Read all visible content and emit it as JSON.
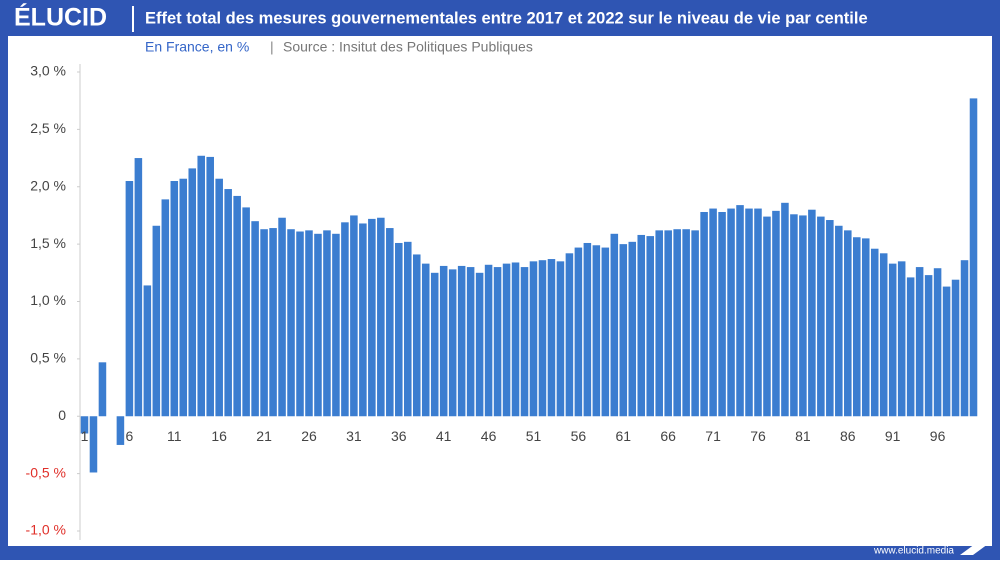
{
  "brand": {
    "logo": "ÉLUCID",
    "website": "www.elucid.media"
  },
  "chart_data": {
    "type": "bar",
    "title": "Effet total des mesures gouvernementales entre 2017 et 2022 sur le niveau de vie par centile",
    "subtitle": "En France, en %",
    "source": "Source : Insitut des Politiques Publiques",
    "categories": [
      "1",
      null,
      null,
      null,
      null,
      "6",
      null,
      null,
      null,
      null,
      "11",
      null,
      null,
      null,
      null,
      "16",
      null,
      null,
      null,
      null,
      "21",
      null,
      null,
      null,
      null,
      "26",
      null,
      null,
      null,
      null,
      "31",
      null,
      null,
      null,
      null,
      "36",
      null,
      null,
      null,
      null,
      "41",
      null,
      null,
      null,
      null,
      "46",
      null,
      null,
      null,
      null,
      "51",
      null,
      null,
      null,
      null,
      "56",
      null,
      null,
      null,
      null,
      "61",
      null,
      null,
      null,
      null,
      "66",
      null,
      null,
      null,
      null,
      "71",
      null,
      null,
      null,
      null,
      "76",
      null,
      null,
      null,
      null,
      "81",
      null,
      null,
      null,
      null,
      "86",
      null,
      null,
      null,
      null,
      "91",
      null,
      null,
      null,
      null,
      "96",
      null,
      null,
      null,
      null
    ],
    "values": [
      -0.15,
      -0.49,
      0.47,
      0,
      -0.25,
      2.05,
      2.25,
      1.14,
      1.66,
      1.89,
      2.05,
      2.07,
      2.16,
      2.27,
      2.26,
      2.07,
      1.98,
      1.92,
      1.82,
      1.7,
      1.63,
      1.64,
      1.73,
      1.63,
      1.61,
      1.62,
      1.59,
      1.62,
      1.59,
      1.69,
      1.75,
      1.68,
      1.72,
      1.73,
      1.64,
      1.51,
      1.52,
      1.41,
      1.33,
      1.25,
      1.31,
      1.28,
      1.31,
      1.3,
      1.25,
      1.32,
      1.3,
      1.33,
      1.34,
      1.3,
      1.35,
      1.36,
      1.37,
      1.35,
      1.42,
      1.47,
      1.51,
      1.49,
      1.47,
      1.59,
      1.5,
      1.52,
      1.58,
      1.57,
      1.62,
      1.62,
      1.63,
      1.63,
      1.62,
      1.78,
      1.81,
      1.78,
      1.81,
      1.84,
      1.81,
      1.81,
      1.74,
      1.79,
      1.86,
      1.76,
      1.75,
      1.8,
      1.74,
      1.71,
      1.66,
      1.62,
      1.56,
      1.55,
      1.46,
      1.42,
      1.33,
      1.35,
      1.21,
      1.3,
      1.23,
      1.29,
      1.13,
      1.19,
      1.36,
      2.77
    ],
    "color": "#3b7dd0",
    "negative_tick_color": "#e0302a",
    "ylim": [
      -1,
      3
    ],
    "yticks": [
      {
        "value": -1,
        "label": "-1,0 %"
      },
      {
        "value": -0.5,
        "label": "-0,5 %"
      },
      0,
      {
        "value": 0.5,
        "label": "0,5 %"
      },
      {
        "value": 1,
        "label": "1,0 %"
      },
      {
        "value": 1.5,
        "label": "1,5 %"
      },
      {
        "value": 2,
        "label": "2,0 %"
      },
      {
        "value": 2.5,
        "label": "2,5 %"
      },
      {
        "value": 3,
        "label": "3,0 %"
      }
    ],
    "grid": false
  }
}
